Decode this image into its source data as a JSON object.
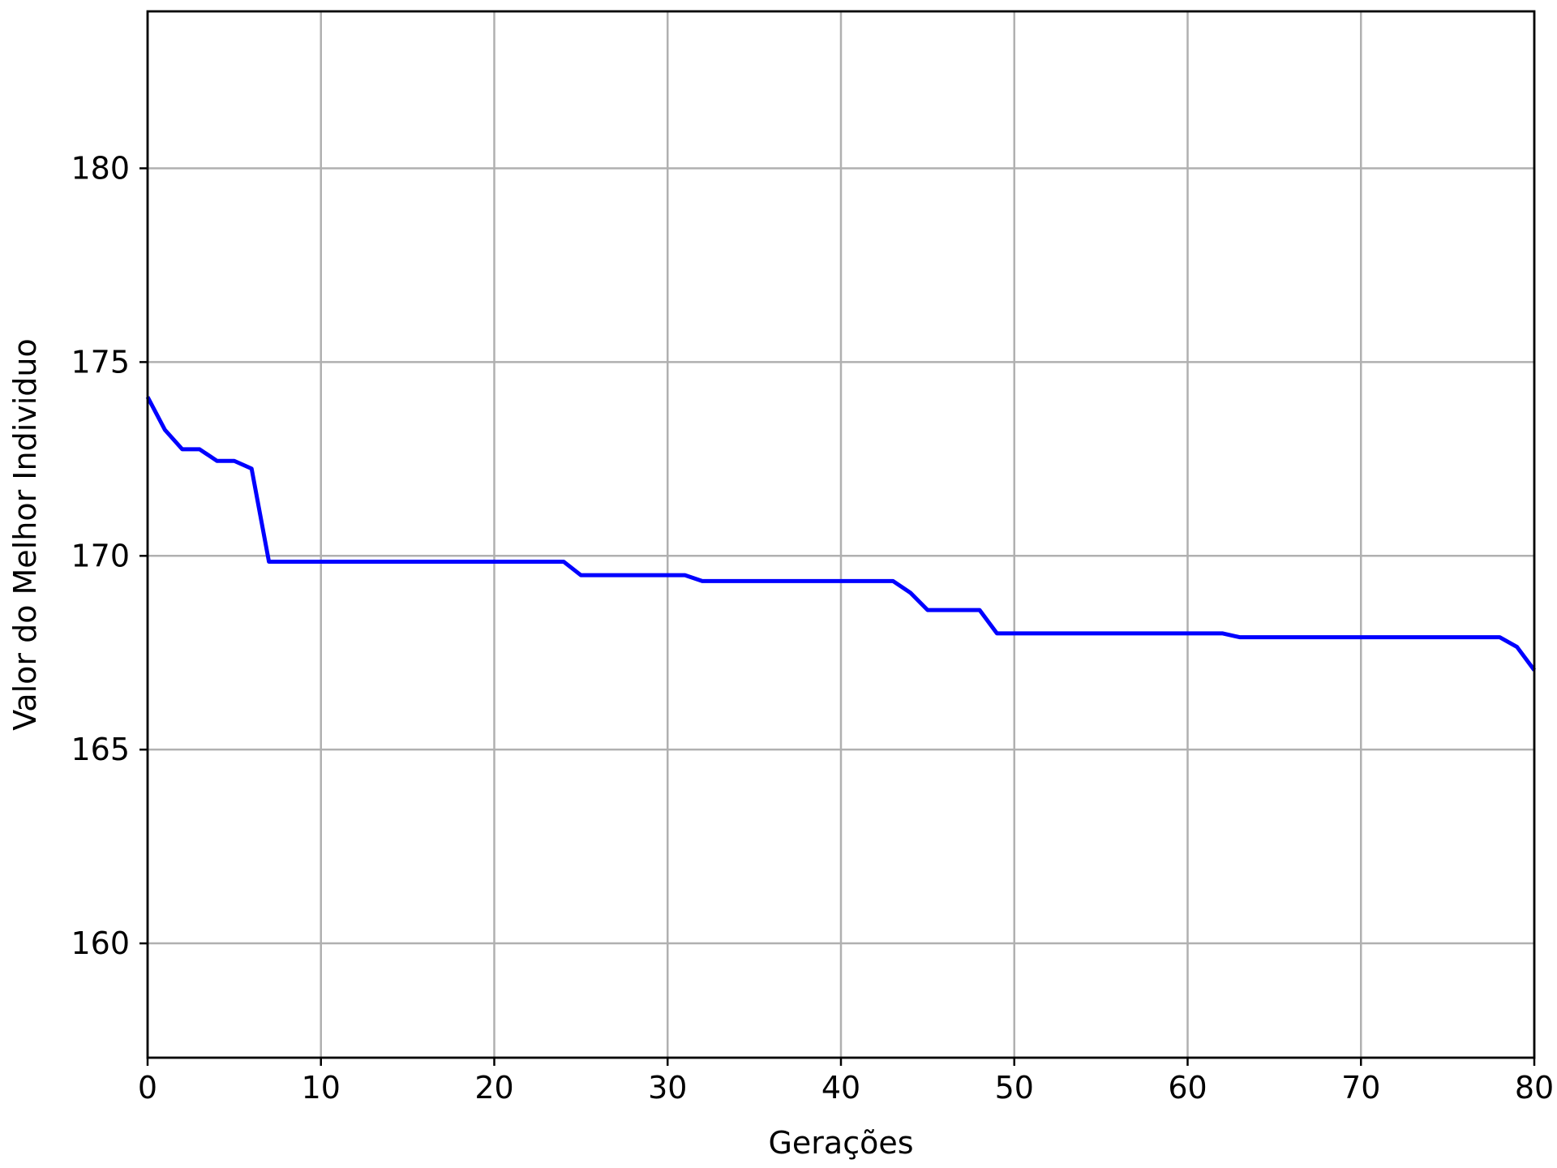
{
  "chart_data": {
    "type": "line",
    "title": "",
    "xlabel": "Gerações",
    "ylabel": "Valor do Melhor Individuo",
    "xlim": [
      0,
      80
    ],
    "ylim": [
      157.05,
      184.05
    ],
    "xticks": [
      0,
      10,
      20,
      30,
      40,
      50,
      60,
      70,
      80
    ],
    "yticks": [
      160,
      165,
      170,
      175,
      180
    ],
    "grid": true,
    "legend": "none",
    "series": [
      {
        "color": "#0000ff",
        "x": [
          0,
          1,
          2,
          3,
          4,
          5,
          6,
          7,
          8,
          9,
          10,
          11,
          12,
          13,
          14,
          15,
          16,
          17,
          18,
          19,
          20,
          21,
          22,
          23,
          24,
          25,
          26,
          27,
          28,
          29,
          30,
          31,
          32,
          33,
          34,
          35,
          36,
          37,
          38,
          39,
          40,
          41,
          42,
          43,
          44,
          45,
          46,
          47,
          48,
          49,
          50,
          51,
          52,
          53,
          54,
          55,
          56,
          57,
          58,
          59,
          60,
          61,
          62,
          63,
          64,
          65,
          66,
          67,
          68,
          69,
          70,
          71,
          72,
          73,
          74,
          75,
          76,
          77,
          78,
          79,
          80
        ],
        "y": [
          174.1,
          173.25,
          172.75,
          172.75,
          172.45,
          172.45,
          172.25,
          169.85,
          169.85,
          169.85,
          169.85,
          169.85,
          169.85,
          169.85,
          169.85,
          169.85,
          169.85,
          169.85,
          169.85,
          169.85,
          169.85,
          169.85,
          169.85,
          169.85,
          169.85,
          169.5,
          169.5,
          169.5,
          169.5,
          169.5,
          169.5,
          169.5,
          169.35,
          169.35,
          169.35,
          169.35,
          169.35,
          169.35,
          169.35,
          169.35,
          169.35,
          169.35,
          169.35,
          169.35,
          169.05,
          168.6,
          168.6,
          168.6,
          168.6,
          168.0,
          168.0,
          168.0,
          168.0,
          168.0,
          168.0,
          168.0,
          168.0,
          168.0,
          168.0,
          168.0,
          168.0,
          168.0,
          168.0,
          167.9,
          167.9,
          167.9,
          167.9,
          167.9,
          167.9,
          167.9,
          167.9,
          167.9,
          167.9,
          167.9,
          167.9,
          167.9,
          167.9,
          167.9,
          167.9,
          167.65,
          167.05
        ]
      }
    ]
  }
}
